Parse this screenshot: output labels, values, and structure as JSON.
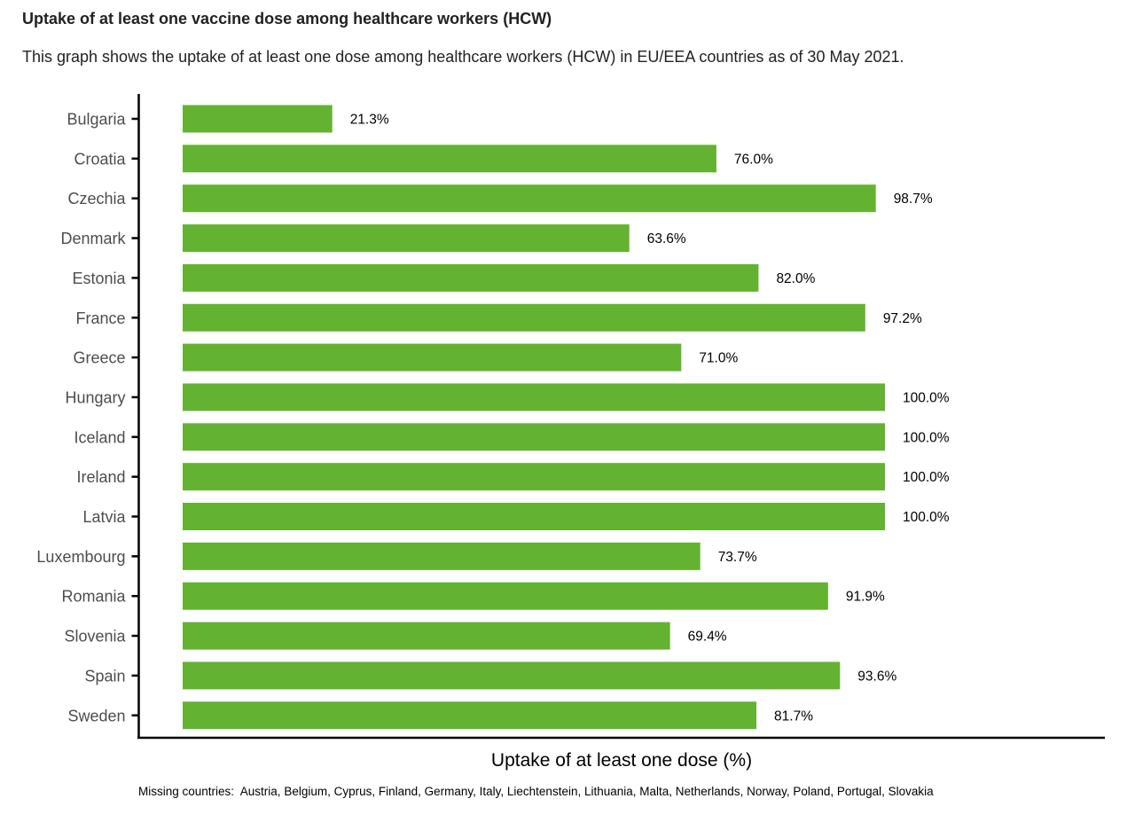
{
  "title": "Uptake of at least one vaccine dose among healthcare workers (HCW)",
  "subtitle": "This graph shows the uptake of at least one dose among healthcare workers (HCW) in EU/EEA countries as of 30 May 2021.",
  "footnote": "Missing countries:  Austria, Belgium, Cyprus, Finland, Germany, Italy, Liechtenstein, Lithuania, Malta, Netherlands, Norway, Poland, Portugal, Slovakia",
  "colors": {
    "bar": "#64b232",
    "axis": "#000000"
  },
  "chart_data": {
    "type": "bar",
    "orientation": "horizontal",
    "title": "Uptake of at least one vaccine dose among healthcare workers (HCW)",
    "xlabel": "Uptake of at least one dose (%)",
    "ylabel": "",
    "xlim": [
      0,
      100
    ],
    "grid": false,
    "categories": [
      "Bulgaria",
      "Croatia",
      "Czechia",
      "Denmark",
      "Estonia",
      "France",
      "Greece",
      "Hungary",
      "Iceland",
      "Ireland",
      "Latvia",
      "Luxembourg",
      "Romania",
      "Slovenia",
      "Spain",
      "Sweden"
    ],
    "values": [
      21.3,
      76.0,
      98.7,
      63.6,
      82.0,
      97.2,
      71.0,
      100.0,
      100.0,
      100.0,
      100.0,
      73.7,
      91.9,
      69.4,
      93.6,
      81.7
    ],
    "value_labels": [
      "21.3%",
      "76.0%",
      "98.7%",
      "63.6%",
      "82.0%",
      "97.2%",
      "71.0%",
      "100.0%",
      "100.0%",
      "100.0%",
      "100.0%",
      "73.7%",
      "91.9%",
      "69.4%",
      "93.6%",
      "81.7%"
    ]
  }
}
